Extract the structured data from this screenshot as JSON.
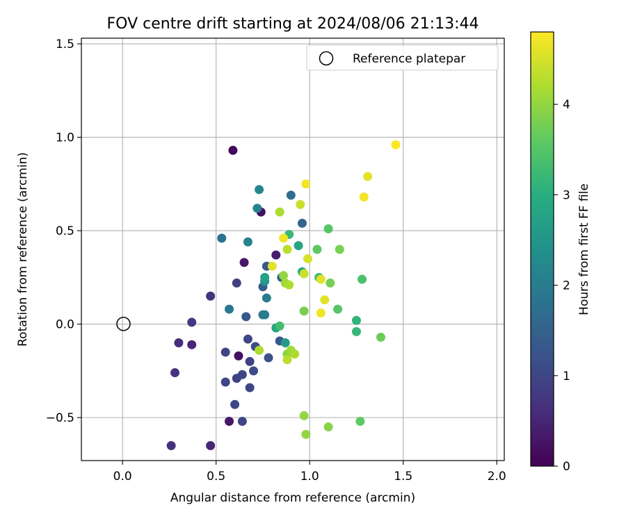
{
  "chart_data": {
    "type": "scatter",
    "title": "FOV centre drift starting at 2024/08/06 21:13:44",
    "xlabel": "Angular distance from reference (arcmin)",
    "ylabel": "Rotation from reference (arcmin)",
    "xlim": [
      -0.22,
      2.04
    ],
    "ylim": [
      -0.73,
      1.53
    ],
    "xticks": [
      0.0,
      0.5,
      1.0,
      1.5,
      2.0
    ],
    "xtick_labels": [
      "0.0",
      "0.5",
      "1.0",
      "1.5",
      "2.0"
    ],
    "yticks": [
      -0.5,
      0.0,
      0.5,
      1.0,
      1.5
    ],
    "ytick_labels": [
      "−0.5",
      "0.0",
      "0.5",
      "1.0",
      "1.5"
    ],
    "grid": true,
    "legend": {
      "placement": "top-right",
      "entries": [
        "Reference platepar"
      ]
    },
    "reference_point": {
      "x": 0.0,
      "y": 0.0
    },
    "colorbar": {
      "label": "Hours from first FF file",
      "colormap": "viridis",
      "range": [
        0,
        4.8
      ],
      "ticks": [
        0,
        1,
        2,
        3,
        4
      ],
      "tick_labels": [
        "0",
        "1",
        "2",
        "3",
        "4"
      ]
    },
    "points": [
      {
        "x": 0.59,
        "y": 0.93,
        "h": 0.1
      },
      {
        "x": 0.74,
        "y": 0.6,
        "h": 0.2
      },
      {
        "x": 0.65,
        "y": 0.33,
        "h": 0.3
      },
      {
        "x": 0.82,
        "y": 0.37,
        "h": 0.4
      },
      {
        "x": 0.62,
        "y": -0.17,
        "h": 0.2
      },
      {
        "x": 0.57,
        "y": -0.52,
        "h": 0.3
      },
      {
        "x": 0.47,
        "y": -0.65,
        "h": 0.5
      },
      {
        "x": 0.26,
        "y": -0.65,
        "h": 0.7
      },
      {
        "x": 0.3,
        "y": -0.1,
        "h": 0.6
      },
      {
        "x": 0.37,
        "y": -0.11,
        "h": 0.5
      },
      {
        "x": 0.28,
        "y": -0.26,
        "h": 0.7
      },
      {
        "x": 0.37,
        "y": 0.01,
        "h": 0.8
      },
      {
        "x": 0.47,
        "y": 0.15,
        "h": 0.7
      },
      {
        "x": 0.61,
        "y": 0.22,
        "h": 0.9
      },
      {
        "x": 0.55,
        "y": -0.15,
        "h": 1.0
      },
      {
        "x": 0.55,
        "y": -0.31,
        "h": 1.0
      },
      {
        "x": 0.61,
        "y": -0.29,
        "h": 0.9
      },
      {
        "x": 0.64,
        "y": -0.27,
        "h": 1.0
      },
      {
        "x": 0.68,
        "y": -0.2,
        "h": 0.9
      },
      {
        "x": 0.68,
        "y": -0.34,
        "h": 1.0
      },
      {
        "x": 0.7,
        "y": -0.25,
        "h": 1.1
      },
      {
        "x": 0.64,
        "y": -0.52,
        "h": 1.0
      },
      {
        "x": 0.6,
        "y": -0.43,
        "h": 1.0
      },
      {
        "x": 0.67,
        "y": -0.08,
        "h": 1.0
      },
      {
        "x": 0.71,
        "y": -0.12,
        "h": 1.1
      },
      {
        "x": 0.78,
        "y": -0.18,
        "h": 1.2
      },
      {
        "x": 0.66,
        "y": 0.04,
        "h": 1.3
      },
      {
        "x": 0.75,
        "y": 0.2,
        "h": 1.4
      },
      {
        "x": 0.77,
        "y": 0.31,
        "h": 1.3
      },
      {
        "x": 0.84,
        "y": -0.09,
        "h": 1.3
      },
      {
        "x": 0.85,
        "y": 0.25,
        "h": 1.5
      },
      {
        "x": 0.96,
        "y": 0.54,
        "h": 1.6
      },
      {
        "x": 0.9,
        "y": 0.69,
        "h": 1.7
      },
      {
        "x": 0.53,
        "y": 0.46,
        "h": 1.8
      },
      {
        "x": 0.57,
        "y": 0.08,
        "h": 1.9
      },
      {
        "x": 0.75,
        "y": 0.05,
        "h": 1.9
      },
      {
        "x": 0.77,
        "y": 0.14,
        "h": 2.0
      },
      {
        "x": 0.76,
        "y": 0.05,
        "h": 2.0
      },
      {
        "x": 0.67,
        "y": 0.44,
        "h": 2.1
      },
      {
        "x": 0.72,
        "y": 0.62,
        "h": 2.1
      },
      {
        "x": 0.73,
        "y": 0.72,
        "h": 2.2
      },
      {
        "x": 0.76,
        "y": 0.23,
        "h": 2.5
      },
      {
        "x": 0.76,
        "y": 0.25,
        "h": 2.7
      },
      {
        "x": 0.87,
        "y": -0.1,
        "h": 2.6
      },
      {
        "x": 0.82,
        "y": -0.02,
        "h": 2.8
      },
      {
        "x": 0.94,
        "y": 0.42,
        "h": 2.8
      },
      {
        "x": 0.96,
        "y": 0.28,
        "h": 2.9
      },
      {
        "x": 0.89,
        "y": 0.48,
        "h": 3.2
      },
      {
        "x": 1.05,
        "y": 0.25,
        "h": 3.3
      },
      {
        "x": 0.84,
        "y": -0.01,
        "h": 3.3
      },
      {
        "x": 1.25,
        "y": 0.02,
        "h": 3.1
      },
      {
        "x": 1.25,
        "y": -0.04,
        "h": 3.2
      },
      {
        "x": 1.27,
        "y": -0.52,
        "h": 3.6
      },
      {
        "x": 1.28,
        "y": 0.24,
        "h": 3.4
      },
      {
        "x": 1.1,
        "y": 0.51,
        "h": 3.5
      },
      {
        "x": 1.04,
        "y": 0.4,
        "h": 3.6
      },
      {
        "x": 1.15,
        "y": 0.08,
        "h": 3.5
      },
      {
        "x": 1.16,
        "y": 0.4,
        "h": 3.8
      },
      {
        "x": 1.11,
        "y": 0.22,
        "h": 3.8
      },
      {
        "x": 0.97,
        "y": 0.07,
        "h": 3.8
      },
      {
        "x": 1.38,
        "y": -0.07,
        "h": 3.7
      },
      {
        "x": 0.97,
        "y": -0.49,
        "h": 4.0
      },
      {
        "x": 0.98,
        "y": -0.59,
        "h": 4.0
      },
      {
        "x": 1.1,
        "y": -0.55,
        "h": 3.9
      },
      {
        "x": 0.88,
        "y": -0.16,
        "h": 3.9
      },
      {
        "x": 0.9,
        "y": -0.14,
        "h": 4.1
      },
      {
        "x": 0.92,
        "y": -0.16,
        "h": 4.2
      },
      {
        "x": 0.73,
        "y": -0.14,
        "h": 4.2
      },
      {
        "x": 0.88,
        "y": -0.19,
        "h": 4.3
      },
      {
        "x": 0.86,
        "y": 0.26,
        "h": 4.0
      },
      {
        "x": 0.87,
        "y": 0.22,
        "h": 4.1
      },
      {
        "x": 0.89,
        "y": 0.21,
        "h": 4.2
      },
      {
        "x": 0.88,
        "y": 0.4,
        "h": 4.3
      },
      {
        "x": 0.84,
        "y": 0.6,
        "h": 4.2
      },
      {
        "x": 0.95,
        "y": 0.64,
        "h": 4.4
      },
      {
        "x": 0.97,
        "y": 0.27,
        "h": 4.4
      },
      {
        "x": 0.99,
        "y": 0.35,
        "h": 4.5
      },
      {
        "x": 0.8,
        "y": 0.31,
        "h": 4.6
      },
      {
        "x": 0.86,
        "y": 0.46,
        "h": 4.7
      },
      {
        "x": 1.06,
        "y": 0.24,
        "h": 4.6
      },
      {
        "x": 1.08,
        "y": 0.13,
        "h": 4.6
      },
      {
        "x": 1.06,
        "y": 0.06,
        "h": 4.7
      },
      {
        "x": 0.98,
        "y": 0.75,
        "h": 4.7
      },
      {
        "x": 1.29,
        "y": 0.68,
        "h": 4.7
      },
      {
        "x": 1.31,
        "y": 0.79,
        "h": 4.6
      },
      {
        "x": 1.46,
        "y": 0.96,
        "h": 4.8
      }
    ]
  }
}
